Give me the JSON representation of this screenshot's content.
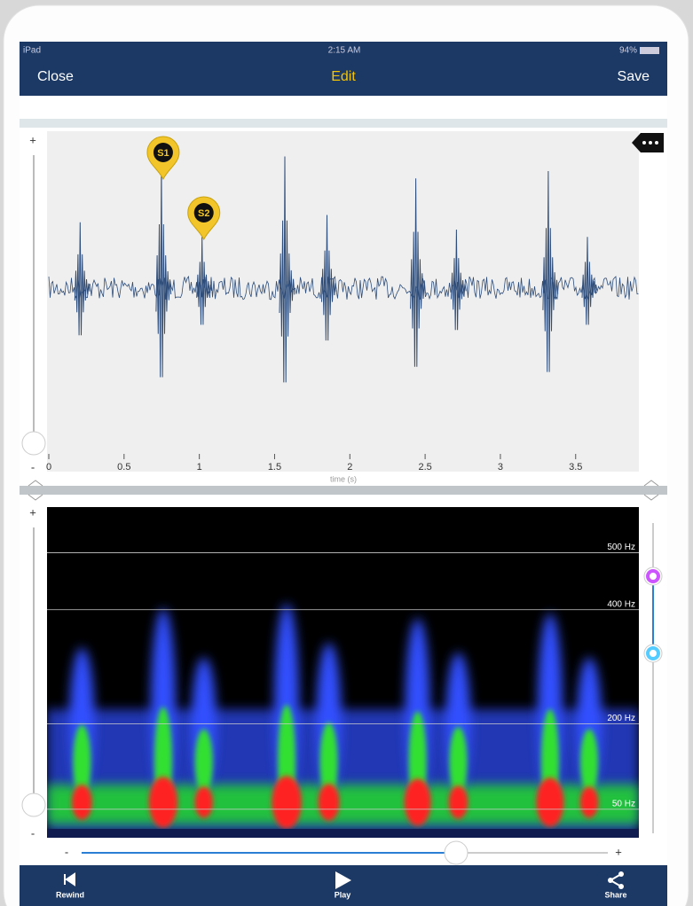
{
  "status_bar": {
    "carrier": "iPad",
    "time": "2:15 AM",
    "battery": "94%"
  },
  "nav_bar": {
    "left": "Close",
    "title": "Edit",
    "right": "Save"
  },
  "waveform": {
    "zoom_in": "+",
    "zoom_out": "-",
    "xlim": [
      0,
      3.92
    ],
    "xticks": [
      0,
      0.5,
      1,
      1.5,
      2,
      2.5,
      3,
      3.5
    ],
    "xlabel": "time (s)",
    "markers": [
      {
        "label": "S1",
        "x": 0.76
      },
      {
        "label": "S2",
        "x": 1.03
      }
    ],
    "spikes": [
      {
        "x": 0.22,
        "amp": 0.45
      },
      {
        "x": 0.76,
        "amp": 0.85
      },
      {
        "x": 1.03,
        "amp": 0.35
      },
      {
        "x": 1.58,
        "amp": 0.9
      },
      {
        "x": 1.86,
        "amp": 0.5
      },
      {
        "x": 2.45,
        "amp": 0.75
      },
      {
        "x": 2.72,
        "amp": 0.4
      },
      {
        "x": 3.33,
        "amp": 0.8
      },
      {
        "x": 3.59,
        "amp": 0.35
      }
    ]
  },
  "spectrogram": {
    "zoom_in": "+",
    "zoom_out": "-",
    "ylim": [
      0,
      580
    ],
    "yticks": [
      {
        "value": 500,
        "label": "500 Hz"
      },
      {
        "value": 400,
        "label": "400 Hz"
      },
      {
        "value": 200,
        "label": "200 Hz"
      },
      {
        "value": 50,
        "label": "50 Hz"
      }
    ]
  },
  "timeline": {
    "start": "-",
    "end": "+"
  },
  "toolbar": {
    "buttons": [
      "Rewind",
      "Play",
      "Share"
    ]
  }
}
